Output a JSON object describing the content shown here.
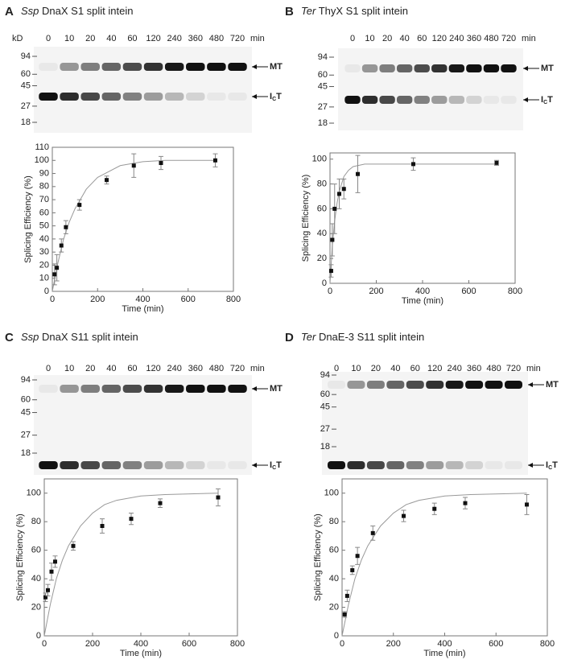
{
  "chart_data": [
    {
      "type": "scatter",
      "panel": "A",
      "species": "Ssp",
      "title": "DnaX S1 split intein",
      "gel": {
        "unit": "kD",
        "markers": [
          94,
          60,
          45,
          27,
          18
        ],
        "lanes": [
          0,
          10,
          20,
          40,
          60,
          120,
          240,
          360,
          480,
          720
        ],
        "lane_unit": "min",
        "bands": [
          {
            "label": "MT"
          },
          {
            "label": "I",
            "sub": "C",
            "tail": "T"
          }
        ]
      },
      "x_label": "Time (min)",
      "y_label": "Splicing Efficiency (%)",
      "xlim": [
        0,
        800
      ],
      "xticks": [
        0,
        200,
        400,
        600,
        800
      ],
      "ylim": [
        0,
        110
      ],
      "yticks": [
        0,
        10,
        20,
        30,
        40,
        50,
        60,
        70,
        80,
        90,
        100,
        110
      ],
      "series": [
        {
          "color": "#111111",
          "x": [
            10,
            20,
            40,
            60,
            120,
            240,
            360,
            480,
            720
          ],
          "values": [
            13,
            18,
            35,
            49,
            66,
            85,
            96,
            98,
            100
          ],
          "errors": [
            8,
            10,
            5,
            5,
            4,
            3,
            9,
            5,
            5
          ]
        }
      ],
      "fit": {
        "color": "#999999",
        "x": [
          0,
          25,
          50,
          75,
          100,
          150,
          200,
          300,
          400,
          500,
          600,
          720
        ],
        "values": [
          0,
          22,
          40,
          53,
          63,
          78,
          87,
          96,
          99,
          100,
          100,
          100
        ]
      }
    },
    {
      "type": "scatter",
      "panel": "B",
      "species": "Ter",
      "title": "ThyX S1 split intein",
      "gel": {
        "markers": [
          94,
          60,
          45,
          27,
          18
        ],
        "lanes": [
          0,
          10,
          20,
          40,
          60,
          120,
          240,
          360,
          480,
          720
        ],
        "lane_unit": "min",
        "bands": [
          {
            "label": "MT"
          },
          {
            "label": "I",
            "sub": "C",
            "tail": "T"
          }
        ]
      },
      "x_label": "Time (min)",
      "y_label": "Splicing Efficiency (%)",
      "xlim": [
        0,
        800
      ],
      "xticks": [
        0,
        200,
        400,
        600,
        800
      ],
      "ylim": [
        0,
        105
      ],
      "yticks": [
        0,
        20,
        40,
        60,
        80,
        100
      ],
      "series": [
        {
          "color": "#111111",
          "x": [
            5,
            10,
            20,
            40,
            60,
            120,
            360,
            720
          ],
          "values": [
            10,
            35,
            60,
            72,
            76,
            88,
            96,
            97
          ],
          "errors": [
            5,
            13,
            20,
            12,
            8,
            15,
            5,
            2
          ]
        }
      ],
      "fit": {
        "color": "#999999",
        "x": [
          0,
          10,
          20,
          30,
          40,
          60,
          80,
          100,
          150,
          200,
          300,
          400,
          600,
          720
        ],
        "values": [
          0,
          30,
          50,
          64,
          74,
          86,
          91,
          94,
          96,
          96,
          96,
          96,
          96,
          96
        ]
      }
    },
    {
      "type": "scatter",
      "panel": "C",
      "species": "Ssp",
      "title": "DnaX S11 split intein",
      "gel": {
        "markers": [
          94,
          60,
          45,
          27,
          18
        ],
        "lanes": [
          0,
          10,
          20,
          40,
          60,
          120,
          240,
          360,
          480,
          720
        ],
        "lane_unit": "min",
        "bands": [
          {
            "label": "MT"
          },
          {
            "label": "I",
            "sub": "C",
            "tail": "T"
          }
        ]
      },
      "x_label": "Time (min)",
      "y_label": "Splicing Efficiency (%)",
      "xlim": [
        0,
        800
      ],
      "xticks": [
        0,
        200,
        400,
        600,
        800
      ],
      "ylim": [
        0,
        110
      ],
      "yticks": [
        0,
        20,
        40,
        60,
        80,
        100
      ],
      "series": [
        {
          "color": "#111111",
          "x": [
            5,
            15,
            30,
            45,
            120,
            240,
            360,
            480,
            720
          ],
          "values": [
            27,
            32,
            45,
            52,
            63,
            77,
            82,
            93,
            97
          ],
          "errors": [
            3,
            4,
            6,
            4,
            3,
            5,
            4,
            3,
            6
          ]
        }
      ],
      "fit": {
        "color": "#999999",
        "x": [
          0,
          25,
          50,
          75,
          100,
          150,
          200,
          250,
          300,
          400,
          500,
          720
        ],
        "values": [
          0,
          22,
          40,
          53,
          63,
          77,
          86,
          92,
          95,
          98,
          99,
          100
        ]
      }
    },
    {
      "type": "scatter",
      "panel": "D",
      "species": "Ter",
      "title": "DnaE-3 S11 split intein",
      "gel": {
        "markers": [
          94,
          60,
          45,
          27,
          18
        ],
        "lanes": [
          0,
          10,
          20,
          40,
          60,
          120,
          240,
          360,
          480,
          720
        ],
        "lane_unit": "min",
        "bands": [
          {
            "label": "MT"
          },
          {
            "label": "I",
            "sub": "C",
            "tail": "T"
          }
        ]
      },
      "x_label": "Time (min)",
      "y_label": "Splicing Efficiency (%)",
      "xlim": [
        0,
        800
      ],
      "xticks": [
        0,
        200,
        400,
        600,
        800
      ],
      "ylim": [
        0,
        110
      ],
      "yticks": [
        0,
        20,
        40,
        60,
        80,
        100
      ],
      "series": [
        {
          "color": "#111111",
          "x": [
            10,
            20,
            40,
            60,
            120,
            240,
            360,
            480,
            720
          ],
          "values": [
            15,
            28,
            46,
            56,
            72,
            84,
            89,
            93,
            92
          ],
          "errors": [
            2,
            4,
            3,
            6,
            5,
            4,
            4,
            4,
            7
          ]
        }
      ],
      "fit": {
        "color": "#999999",
        "x": [
          0,
          25,
          50,
          75,
          100,
          150,
          200,
          250,
          300,
          400,
          500,
          720
        ],
        "values": [
          0,
          22,
          40,
          53,
          63,
          77,
          86,
          92,
          95,
          98,
          99,
          100
        ]
      }
    }
  ]
}
